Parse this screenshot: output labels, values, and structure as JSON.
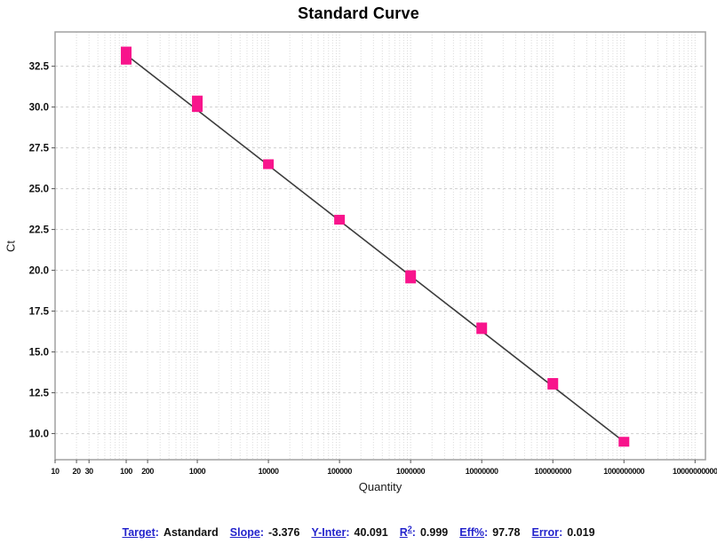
{
  "title": "Standard Curve",
  "chart_data": {
    "type": "scatter",
    "title": "Standard Curve",
    "xlabel": "Quantity",
    "ylabel": "Ct",
    "x_scale": "log",
    "grid": true,
    "xlim": [
      10,
      14000000000
    ],
    "ylim": [
      8.4,
      34.6
    ],
    "x_tick_values": [
      10,
      20,
      30,
      100,
      200,
      1000,
      10000,
      100000,
      1000000,
      10000000,
      100000000,
      1000000000,
      10000000000
    ],
    "x_tick_labels": [
      "10",
      "20",
      "30",
      "100",
      "200",
      "1000",
      "10000",
      "100000",
      "1000000",
      "10000000",
      "100000000",
      "1000000000",
      "10000000000"
    ],
    "y_tick_values": [
      10.0,
      12.5,
      15.0,
      17.5,
      20.0,
      22.5,
      25.0,
      27.5,
      30.0,
      32.5
    ],
    "y_tick_labels": [
      "10.0",
      "12.5",
      "15.0",
      "17.5",
      "20.0",
      "22.5",
      "25.0",
      "27.5",
      "30.0",
      "32.5"
    ],
    "points": [
      {
        "quantity": 100,
        "ct": 33.2,
        "ct_min": 32.6,
        "ct_max": 33.7
      },
      {
        "quantity": 1000,
        "ct": 30.2,
        "ct_min": 29.7,
        "ct_max": 30.7
      },
      {
        "quantity": 10000,
        "ct": 26.5,
        "ct_min": 26.2,
        "ct_max": 26.8
      },
      {
        "quantity": 100000,
        "ct": 23.1,
        "ct_min": 22.8,
        "ct_max": 23.4
      },
      {
        "quantity": 1000000,
        "ct": 19.6,
        "ct_min": 19.2,
        "ct_max": 20.0
      },
      {
        "quantity": 10000000,
        "ct": 16.5,
        "ct_min": 16.1,
        "ct_max": 16.8
      },
      {
        "quantity": 100000000,
        "ct": 13.0,
        "ct_min": 12.7,
        "ct_max": 13.4
      },
      {
        "quantity": 1000000000,
        "ct": 9.5,
        "ct_min": 9.2,
        "ct_max": 9.8
      }
    ],
    "trendline": {
      "from_quantity": 100,
      "to_quantity": 1000000000
    },
    "marker_color": "#f8148c",
    "line_color": "#3c3c3c",
    "legend": "none"
  },
  "stats": {
    "items": [
      {
        "label": "Target",
        "sup": "",
        "value": "Astandard"
      },
      {
        "label": "Slope",
        "sup": "",
        "value": "-3.376"
      },
      {
        "label": "Y-Inter",
        "sup": "",
        "value": "40.091"
      },
      {
        "label": "R",
        "sup": "2",
        "value": "0.999"
      },
      {
        "label": "Eff%",
        "sup": "",
        "value": "97.78"
      },
      {
        "label": "Error",
        "sup": "",
        "value": "0.019"
      }
    ]
  }
}
